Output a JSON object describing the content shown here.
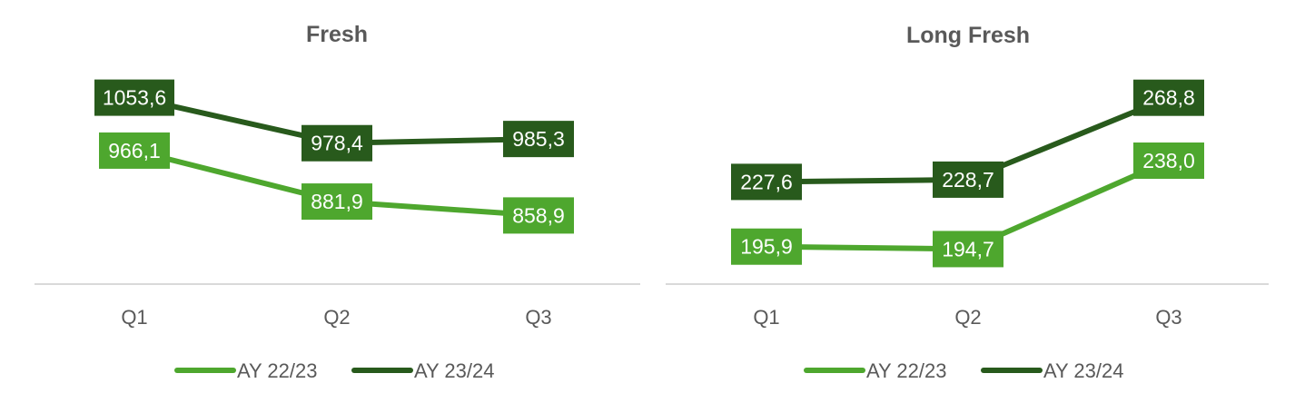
{
  "colors": {
    "ay2223": "#4ea72e",
    "ay2324": "#285a1c",
    "axis": "#d9d9d9",
    "text": "#595959"
  },
  "chart_data": [
    {
      "type": "line",
      "title": "Fresh",
      "categories": [
        "Q1",
        "Q2",
        "Q3"
      ],
      "series": [
        {
          "name": "AY 22/23",
          "values": [
            966.1,
            881.9,
            858.9
          ],
          "labels": [
            "966,1",
            "881,9",
            "858,9"
          ]
        },
        {
          "name": "AY 23/24",
          "values": [
            1053.6,
            978.4,
            985.3
          ],
          "labels": [
            "1053,6",
            "978,4",
            "985,3"
          ]
        }
      ],
      "ylim": [
        720,
        1125
      ],
      "grid": false,
      "legend": "bottom"
    },
    {
      "type": "line",
      "title": "Long Fresh",
      "categories": [
        "Q1",
        "Q2",
        "Q3"
      ],
      "series": [
        {
          "name": "AY 22/23",
          "values": [
            195.9,
            194.7,
            238.0
          ],
          "labels": [
            "195,9",
            "194,7",
            "238,0"
          ]
        },
        {
          "name": "AY 23/24",
          "values": [
            227.6,
            228.7,
            268.8
          ],
          "labels": [
            "227,6",
            "228,7",
            "268,8"
          ]
        }
      ],
      "ylim": [
        170,
        290
      ],
      "grid": false,
      "legend": "bottom"
    }
  ]
}
